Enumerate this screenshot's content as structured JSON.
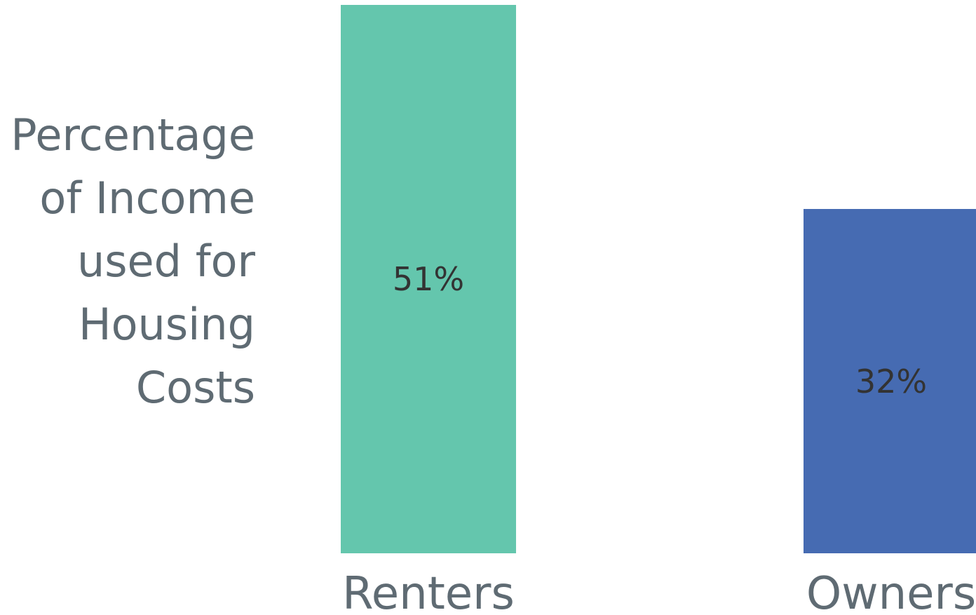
{
  "chart_data": {
    "type": "bar",
    "ylabel": "Percentage of Income used for Housing Costs",
    "categories": [
      "Renters",
      "Owners"
    ],
    "values": [
      51,
      32
    ],
    "value_labels": [
      "51%",
      "32%"
    ],
    "colors": [
      "#64c6ad",
      "#466bb2"
    ],
    "ylim": [
      0,
      51
    ]
  }
}
